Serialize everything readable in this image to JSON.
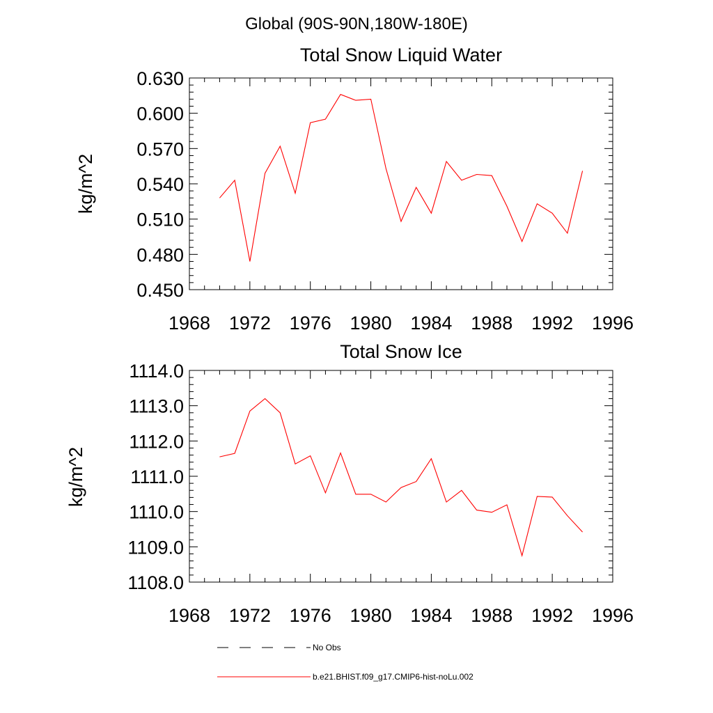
{
  "figure": {
    "suptitle": "Global (90S-90N,180W-180E)"
  },
  "chart_data": [
    {
      "type": "line",
      "title": "Total Snow Liquid Water",
      "xlabel": "",
      "ylabel": "kg/m^2",
      "xlim": [
        1968,
        1996
      ],
      "ylim": [
        0.45,
        0.63
      ],
      "xticks": [
        1968,
        1972,
        1976,
        1980,
        1984,
        1988,
        1992,
        1996
      ],
      "xtick_labels": [
        "1968",
        "1972",
        "1976",
        "1980",
        "1984",
        "1988",
        "1992",
        "1996"
      ],
      "yticks": [
        0.45,
        0.48,
        0.51,
        0.54,
        0.57,
        0.6,
        0.63
      ],
      "ytick_labels": [
        "0.450",
        "0.480",
        "0.510",
        "0.540",
        "0.570",
        "0.600",
        "0.630"
      ],
      "x": [
        1970,
        1971,
        1972,
        1973,
        1974,
        1975,
        1976,
        1977,
        1978,
        1979,
        1980,
        1981,
        1982,
        1983,
        1984,
        1985,
        1986,
        1987,
        1988,
        1989,
        1990,
        1991,
        1992,
        1993,
        1994
      ],
      "series": [
        {
          "name": "b.e21.BHIST.f09_g17.CMIP6-hist-noLu.002",
          "color": "#ff0000",
          "values": [
            0.528,
            0.543,
            0.474,
            0.549,
            0.572,
            0.532,
            0.592,
            0.595,
            0.616,
            0.611,
            0.612,
            0.553,
            0.508,
            0.537,
            0.515,
            0.559,
            0.543,
            0.548,
            0.547,
            0.521,
            0.491,
            0.523,
            0.515,
            0.498,
            0.551
          ]
        }
      ]
    },
    {
      "type": "line",
      "title": "Total Snow Ice",
      "xlabel": "",
      "ylabel": "kg/m^2",
      "xlim": [
        1968,
        1996
      ],
      "ylim": [
        1108.0,
        1114.0
      ],
      "xticks": [
        1968,
        1972,
        1976,
        1980,
        1984,
        1988,
        1992,
        1996
      ],
      "xtick_labels": [
        "1968",
        "1972",
        "1976",
        "1980",
        "1984",
        "1988",
        "1992",
        "1996"
      ],
      "yticks": [
        1108,
        1109,
        1110,
        1111,
        1112,
        1113,
        1114
      ],
      "ytick_labels": [
        "1108.0",
        "1109.0",
        "1110.0",
        "1111.0",
        "1112.0",
        "1113.0",
        "1114.0"
      ],
      "x": [
        1970,
        1971,
        1972,
        1973,
        1974,
        1975,
        1976,
        1977,
        1978,
        1979,
        1980,
        1981,
        1982,
        1983,
        1984,
        1985,
        1986,
        1987,
        1988,
        1989,
        1990,
        1991,
        1992,
        1993,
        1994
      ],
      "series": [
        {
          "name": "b.e21.BHIST.f09_g17.CMIP6-hist-noLu.002",
          "color": "#ff0000",
          "values": [
            1111.55,
            1111.65,
            1112.85,
            1113.2,
            1112.8,
            1111.35,
            1111.58,
            1110.53,
            1111.66,
            1110.49,
            1110.49,
            1110.27,
            1110.68,
            1110.85,
            1111.5,
            1110.27,
            1110.6,
            1110.04,
            1109.98,
            1110.19,
            1108.75,
            1110.43,
            1110.41,
            1109.88,
            1109.42
          ]
        }
      ]
    }
  ],
  "legend": {
    "placement": "bottom-left",
    "entries": [
      {
        "label": "No Obs",
        "color": "#000000",
        "style": "dashed"
      },
      {
        "label": "b.e21.BHIST.f09_g17.CMIP6-hist-noLu.002",
        "color": "#ff0000",
        "style": "solid"
      }
    ]
  }
}
